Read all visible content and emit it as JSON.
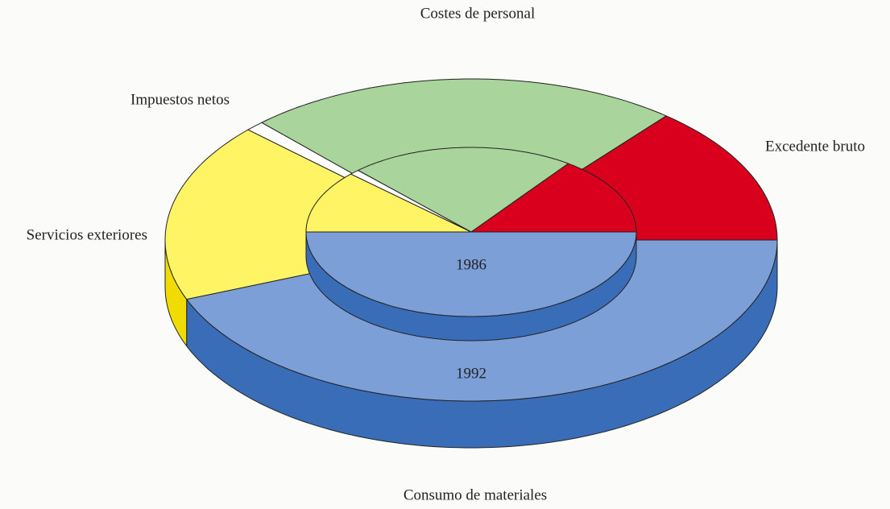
{
  "chart_data": {
    "type": "pie3d-nested",
    "categories": [
      "Consumo de materiales",
      "Servicios exteriores",
      "Impuestos netos",
      "Costes de personal",
      "Excedente bruto"
    ],
    "colors": [
      "#7d9fd8",
      "#fff463",
      "#ffffff",
      "#a9d49b",
      "#d8001c"
    ],
    "side_colors": [
      "#3a6db8",
      "#f0dc00",
      "#dddddd",
      "#7fb070",
      "#a00012"
    ],
    "series": [
      {
        "name": "1986",
        "values": [
          50,
          12,
          1,
          22,
          15
        ]
      },
      {
        "name": "1992",
        "values": [
          44,
          18,
          1,
          23,
          14
        ]
      }
    ]
  }
}
